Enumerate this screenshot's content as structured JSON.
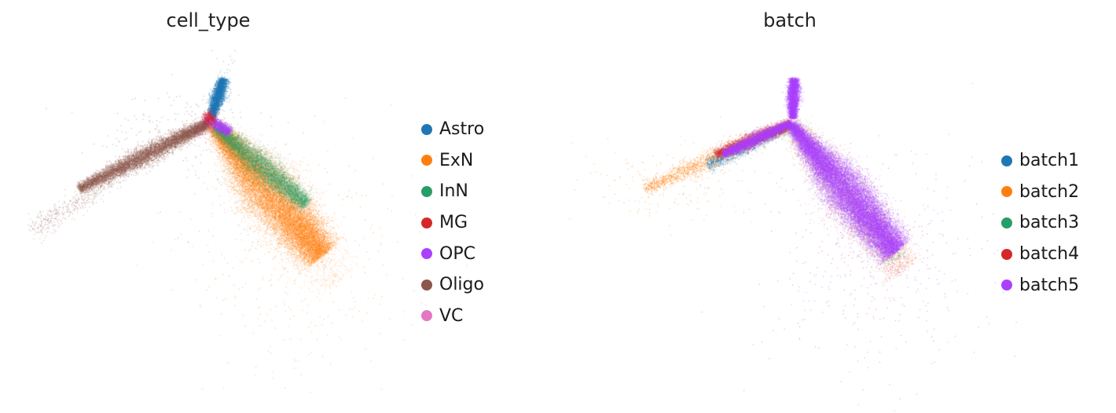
{
  "chart_data": [
    {
      "type": "scatter",
      "title": "cell_type",
      "xlabel": "",
      "ylabel": "",
      "axes_visible": false,
      "grid": false,
      "legend_placement": "right",
      "legend": [
        {
          "name": "Astro",
          "color": "#1f77b4"
        },
        {
          "name": "ExN",
          "color": "#ff7f0e"
        },
        {
          "name": "InN",
          "color": "#279e68"
        },
        {
          "name": "MG",
          "color": "#d62728"
        },
        {
          "name": "OPC",
          "color": "#aa40fc"
        },
        {
          "name": "Oligo",
          "color": "#8c564b"
        },
        {
          "name": "VC",
          "color": "#e377c2"
        }
      ]
    },
    {
      "type": "scatter",
      "title": "batch",
      "xlabel": "",
      "ylabel": "",
      "axes_visible": false,
      "grid": false,
      "legend_placement": "right",
      "legend": [
        {
          "name": "batch1",
          "color": "#1f77b4"
        },
        {
          "name": "batch2",
          "color": "#ff7f0e"
        },
        {
          "name": "batch3",
          "color": "#279e68"
        },
        {
          "name": "batch4",
          "color": "#d62728"
        },
        {
          "name": "batch5",
          "color": "#aa40fc"
        }
      ]
    }
  ]
}
